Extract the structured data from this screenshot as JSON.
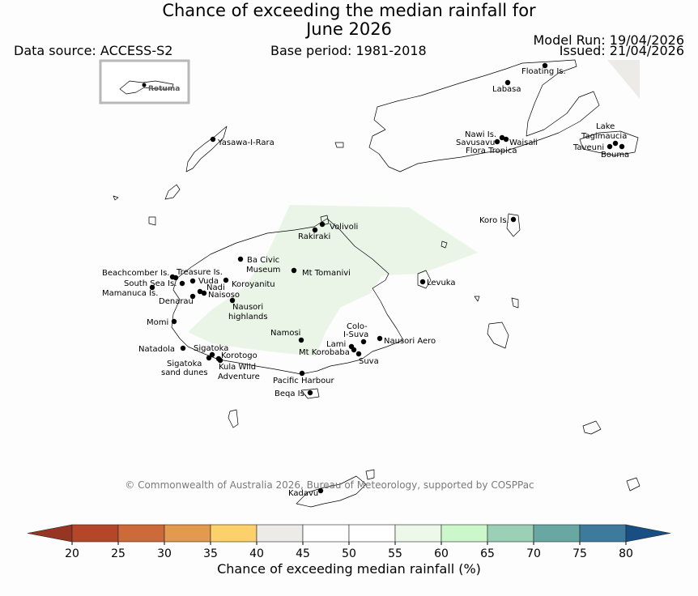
{
  "title": {
    "line1": "Chance of exceeding the median rainfall for",
    "line2": "June 2026"
  },
  "data_source": "Data source: ACCESS-S2",
  "base_period": "Base period: 1981-2018",
  "model_run": "Model Run: 19/04/2026",
  "issued": "Issued: 21/04/2026",
  "inset_label": "Rotuma",
  "copyright": "© Commonwealth of Australia 2026, Bureau of Meteorology, supported by COSPPac",
  "places": [
    {
      "label": "Floating Is."
    },
    {
      "label": "Labasa"
    },
    {
      "label": "Nawi Is."
    },
    {
      "label": "Savusavu"
    },
    {
      "label": "Waisali"
    },
    {
      "label": "Flora Tropica"
    },
    {
      "label": "Lake"
    },
    {
      "label": "Tagimaucia"
    },
    {
      "label": "Taveuni"
    },
    {
      "label": "Bouma"
    },
    {
      "label": "Yasawa-I-Rara"
    },
    {
      "label": "Koro Is."
    },
    {
      "label": "Volivoli"
    },
    {
      "label": "Rakiraki"
    },
    {
      "label": "Ba Civic"
    },
    {
      "label": "Museum"
    },
    {
      "label": "Mt Tomanivi"
    },
    {
      "label": "Beachcomber Is."
    },
    {
      "label": "Treasure Is."
    },
    {
      "label": "South Sea Is."
    },
    {
      "label": "Vuda"
    },
    {
      "label": "Nadi"
    },
    {
      "label": "Mamanuca Is."
    },
    {
      "label": "Naisoso"
    },
    {
      "label": "Koroyanitu"
    },
    {
      "label": "Denarau"
    },
    {
      "label": "Nausori"
    },
    {
      "label": "highlands"
    },
    {
      "label": "Levuka"
    },
    {
      "label": "Momi"
    },
    {
      "label": "Namosi"
    },
    {
      "label": "Colo-"
    },
    {
      "label": "I-Suva"
    },
    {
      "label": "Nausori Aero"
    },
    {
      "label": "Lami"
    },
    {
      "label": "Mt Korobaba"
    },
    {
      "label": "Suva"
    },
    {
      "label": "Natadola"
    },
    {
      "label": "Sigatoka"
    },
    {
      "label": "Korotogo"
    },
    {
      "label": "Sigatoka"
    },
    {
      "label": "sand dunes"
    },
    {
      "label": "Kula Wild"
    },
    {
      "label": "Adventure"
    },
    {
      "label": "Pacific Harbour"
    },
    {
      "label": "Beqa Is."
    },
    {
      "label": "Kadavu"
    }
  ],
  "colorbar": {
    "label": "Chance of exceeding median rainfall (%)",
    "ticks": [
      "20",
      "25",
      "30",
      "35",
      "40",
      "45",
      "50",
      "55",
      "60",
      "65",
      "70",
      "75",
      "80"
    ],
    "colors": [
      "#b4462a",
      "#cc6a3a",
      "#e3994e",
      "#fcd06a",
      "#ecebe7",
      "#ffffff",
      "#ffffff",
      "#edf8ea",
      "#cbf7cb",
      "#9bcfb6",
      "#69a7a3",
      "#3e7a9c"
    ],
    "under_color": "#963522",
    "over_color": "#174f85"
  },
  "shading": {
    "region": "central Viti Levu",
    "value_range": "55-60",
    "color": "#eaf5e8"
  }
}
